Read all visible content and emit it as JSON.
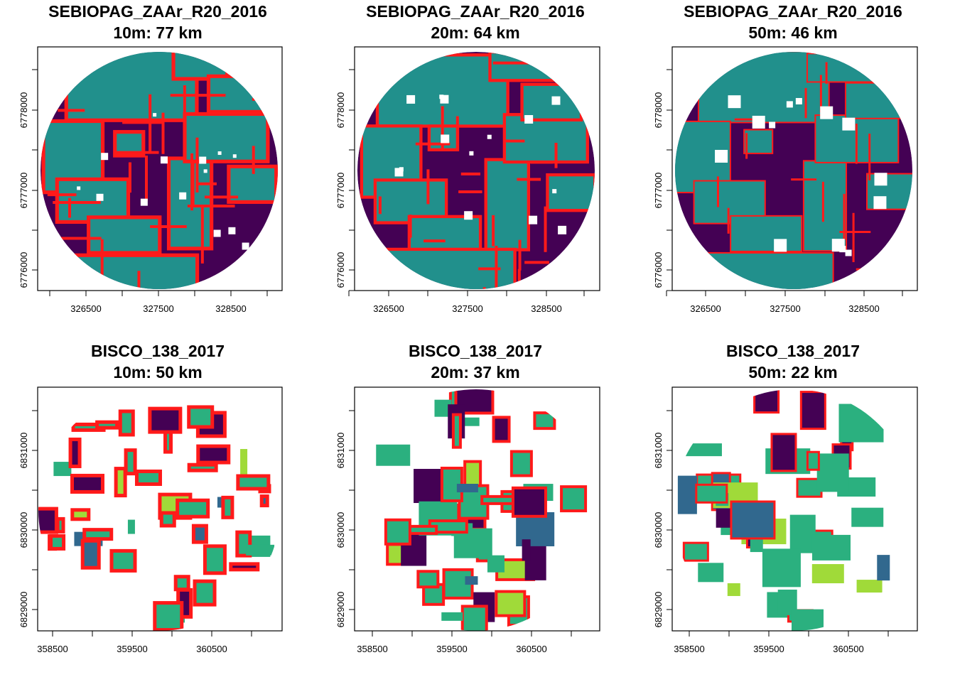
{
  "colors": {
    "dark": "#440154",
    "teal": "#21908c",
    "green": "#2bb07f",
    "blue": "#31688e",
    "lime": "#a0da39",
    "border": "#ff1a1a"
  },
  "panels": [
    {
      "id": "p1",
      "site": "SEBIOPAG_ZAAr_R20_2016",
      "line2": "10m:  77 km",
      "resolution_m": 10,
      "border_km": 77,
      "x_ticks": [
        "326500",
        "327500",
        "328500"
      ],
      "y_ticks": [
        "6776000",
        "6777000",
        "6778000"
      ],
      "style": "dense",
      "classes": [
        "dark",
        "teal"
      ]
    },
    {
      "id": "p2",
      "site": "SEBIOPAG_ZAAr_R20_2016",
      "line2": "20m:  64 km",
      "resolution_m": 20,
      "border_km": 64,
      "x_ticks": [
        "326500",
        "327500",
        "328500"
      ],
      "y_ticks": [
        "6776000",
        "6777000",
        "6778000"
      ],
      "style": "dense",
      "classes": [
        "dark",
        "teal"
      ]
    },
    {
      "id": "p3",
      "site": "SEBIOPAG_ZAAr_R20_2016",
      "line2": "50m:  46 km",
      "resolution_m": 50,
      "border_km": 46,
      "x_ticks": [
        "326500",
        "327500",
        "328500"
      ],
      "y_ticks": [
        "6776000",
        "6777000",
        "6778000"
      ],
      "style": "dense",
      "classes": [
        "dark",
        "teal"
      ]
    },
    {
      "id": "p4",
      "site": "BISCO_138_2017",
      "line2": "10m:  50 km",
      "resolution_m": 10,
      "border_km": 50,
      "x_ticks": [
        "358500",
        "359500",
        "360500"
      ],
      "y_ticks": [
        "6829000",
        "6830000",
        "6831000"
      ],
      "style": "sparse",
      "classes": [
        "dark",
        "green",
        "blue",
        "lime"
      ]
    },
    {
      "id": "p5",
      "site": "BISCO_138_2017",
      "line2": "20m:  37 km",
      "resolution_m": 20,
      "border_km": 37,
      "x_ticks": [
        "358500",
        "359500",
        "360500"
      ],
      "y_ticks": [
        "6829000",
        "6830000",
        "6831000"
      ],
      "style": "sparse",
      "classes": [
        "dark",
        "green",
        "blue",
        "lime"
      ]
    },
    {
      "id": "p6",
      "site": "BISCO_138_2017",
      "line2": "50m:  22 km",
      "resolution_m": 50,
      "border_km": 22,
      "x_ticks": [
        "358500",
        "359500",
        "360500"
      ],
      "y_ticks": [
        "6829000",
        "6830000",
        "6831000"
      ],
      "style": "sparse",
      "classes": [
        "dark",
        "green",
        "blue",
        "lime"
      ]
    }
  ]
}
